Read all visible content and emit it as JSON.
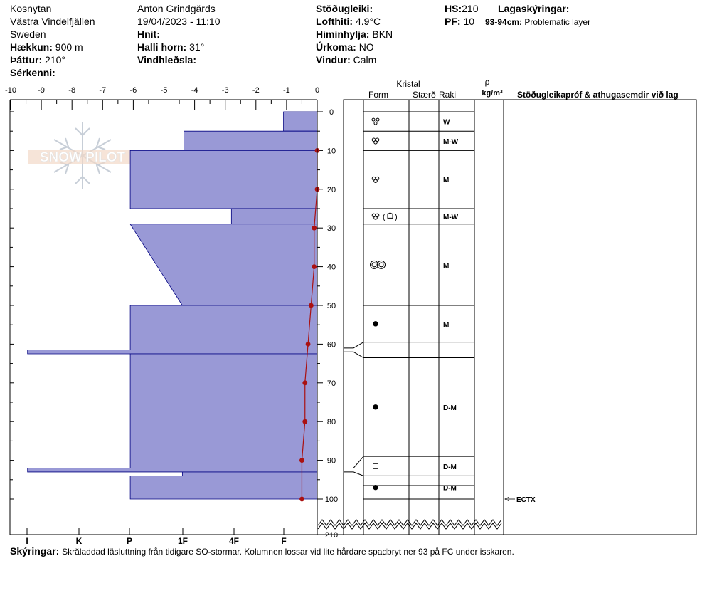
{
  "header": {
    "location": "Kosnytan",
    "region": "Västra Vindelfjällen",
    "country": "Sweden",
    "elevation_label": "Hækkun:",
    "elevation_value": "900 m",
    "aspect_label": "Þáttur:",
    "aspect_value": "210°",
    "features_label": "Sérkenni:",
    "observer": "Anton Grindgärds",
    "datetime": "19/04/2023 - 11:10",
    "coords_label": "Hnit:",
    "slope_label": "Halli horn:",
    "slope_value": "31°",
    "wind_loading_label": "Vindhleðsla:",
    "stability_label": "Stöðugleiki:",
    "air_temp_label": "Lofthiti:",
    "air_temp_value": "4.9°C",
    "sky_label": "Himinhylja:",
    "sky_value": "BKN",
    "precip_label": "Úrkoma:",
    "precip_value": "NO",
    "wind_label": "Vindur:",
    "wind_value": "Calm",
    "hs_label": "HS:",
    "hs_value": "210",
    "pf_label": "PF:",
    "pf_value": "10",
    "layers_label": "Lagaskýringar:",
    "problem_depth": "93-94cm:",
    "problem_text": "Problematic layer"
  },
  "watermark": "SNOW PILOT",
  "columns": {
    "crystal": "Kristal",
    "form": "Form",
    "size": "Stærð",
    "moisture": "Raki",
    "density_symbol": "ρ",
    "density_unit": "kg/m³",
    "tests": "Stöðugleikapróf & athugasemdir við lag"
  },
  "legend": {
    "label": "Skýringar:",
    "text": "Skrăladdad läsluttning från tidigare SO-stormar. Kolumnen lossar vid lite hårdare spadbryt ner 93 på FC under isskaren."
  },
  "chart_data": {
    "type": "snow-profile",
    "temperature_axis": {
      "ticks": [
        "-10",
        "-9",
        "-8",
        "-7",
        "-6",
        "-5",
        "-4",
        "-3",
        "-2",
        "-1",
        "0"
      ],
      "range": [
        -10,
        0
      ]
    },
    "depth_axis": {
      "ticks": [
        "0",
        "10",
        "20",
        "30",
        "40",
        "50",
        "60",
        "70",
        "80",
        "90",
        "100"
      ],
      "range": [
        0,
        100
      ],
      "break_label": "210"
    },
    "hardness_axis": {
      "labels": [
        "I",
        "K",
        "P",
        "1F",
        "4F",
        "F"
      ],
      "scale_values": [
        6,
        5,
        4,
        3,
        2,
        1
      ]
    },
    "hardness_layers": [
      {
        "top": 0,
        "bottom": 5,
        "h_top": 1.1,
        "h_bottom": 1.1
      },
      {
        "top": 5,
        "bottom": 10,
        "h_top": 4.35,
        "h_bottom": 4.35
      },
      {
        "top": 10,
        "bottom": 25,
        "h_top": 6.1,
        "h_bottom": 6.1
      },
      {
        "top": 25,
        "bottom": 29,
        "h_top": 2.8,
        "h_bottom": 2.8
      },
      {
        "top": 29,
        "bottom": 50,
        "h_top": 6.1,
        "h_bottom": 4.4
      },
      {
        "top": 50,
        "bottom": 61.5,
        "h_top": 6.1,
        "h_bottom": 6.1
      },
      {
        "top": 61.5,
        "bottom": 62.5,
        "h_top": 9.45,
        "h_bottom": 9.45
      },
      {
        "top": 62.5,
        "bottom": 92,
        "h_top": 6.1,
        "h_bottom": 6.1
      },
      {
        "top": 92,
        "bottom": 93,
        "h_top": 9.45,
        "h_bottom": 9.45
      },
      {
        "top": 93,
        "bottom": 94,
        "h_top": 4.4,
        "h_bottom": 4.4
      },
      {
        "top": 94,
        "bottom": 100,
        "h_top": 6.1,
        "h_bottom": 6.1
      }
    ],
    "temperature_profile": [
      {
        "depth": 10,
        "temp": 0.0
      },
      {
        "depth": 20,
        "temp": 0.0
      },
      {
        "depth": 30,
        "temp": -0.1
      },
      {
        "depth": 40,
        "temp": -0.1
      },
      {
        "depth": 50,
        "temp": -0.2
      },
      {
        "depth": 60,
        "temp": -0.3
      },
      {
        "depth": 70,
        "temp": -0.4
      },
      {
        "depth": 80,
        "temp": -0.4
      },
      {
        "depth": 90,
        "temp": -0.5
      },
      {
        "depth": 100,
        "temp": -0.5
      }
    ],
    "layer_boundaries": [
      0,
      5,
      10,
      25,
      29,
      50,
      59.5,
      63.5,
      89,
      94,
      96.5,
      100
    ],
    "layers": [
      {
        "top": 0,
        "bottom": 5,
        "form_icon": "precipitation-particles",
        "moisture": "W"
      },
      {
        "top": 5,
        "bottom": 10,
        "form_icon": "rounded-grains",
        "moisture": "M-W"
      },
      {
        "top": 10,
        "bottom": 25,
        "form_icon": "rounded-grains",
        "moisture": "M"
      },
      {
        "top": 25,
        "bottom": 29,
        "form_icon": "rounded-and-faceted",
        "form_text": "(",
        "form_text2": ")",
        "moisture": "M-W"
      },
      {
        "top": 29,
        "bottom": 50,
        "form_icon": "melt-forms",
        "moisture": "M"
      },
      {
        "top": 50,
        "bottom": 59.5,
        "form_icon": "ice-dot",
        "moisture": "M"
      },
      {
        "top": 63.5,
        "bottom": 89,
        "form_icon": "ice-dot",
        "moisture": "D-M"
      },
      {
        "top": 89,
        "bottom": 94,
        "form_icon": "faceted-square",
        "moisture": "D-M"
      },
      {
        "top": 94,
        "bottom": 100,
        "form_icon": "ice-dot",
        "moisture": "D-M"
      }
    ],
    "stability_tests": [
      {
        "depth": 100,
        "label": "ECTX"
      }
    ],
    "colors": {
      "hardness_fill": "#9999d6",
      "hardness_stroke": "#000080",
      "temperature": "#aa1111"
    }
  }
}
